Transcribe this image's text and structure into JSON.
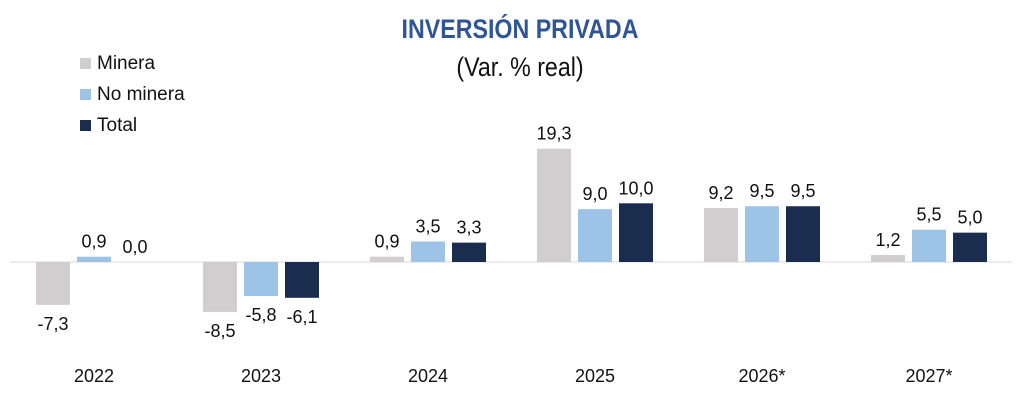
{
  "chart_data": {
    "type": "bar",
    "title": "INVERSIÓN PRIVADA",
    "subtitle": "(Var. % real)",
    "categories": [
      "2022",
      "2023",
      "2024",
      "2025",
      "2026*",
      "2027*"
    ],
    "series": [
      {
        "name": "Minera",
        "color": "#d0cece",
        "values": [
          -7.3,
          -8.5,
          0.9,
          19.3,
          9.2,
          1.2
        ],
        "labels": [
          "-7,3",
          "-8,5",
          "0,9",
          "19,3",
          "9,2",
          "1,2"
        ]
      },
      {
        "name": "No minera",
        "color": "#9dc3e6",
        "values": [
          0.9,
          -5.8,
          3.5,
          9.0,
          9.5,
          5.5
        ],
        "labels": [
          "0,9",
          "-5,8",
          "3,5",
          "9,0",
          "9,5",
          "5,5"
        ]
      },
      {
        "name": "Total",
        "color": "#1b2d4f",
        "values": [
          0.0,
          -6.1,
          3.3,
          10.0,
          9.5,
          5.0
        ],
        "labels": [
          "0,0",
          "-6,1",
          "3,3",
          "10,0",
          "9,5",
          "5,0"
        ]
      }
    ],
    "legend_position": "top-left",
    "grid": false,
    "ylim": [
      -12,
      22
    ]
  }
}
